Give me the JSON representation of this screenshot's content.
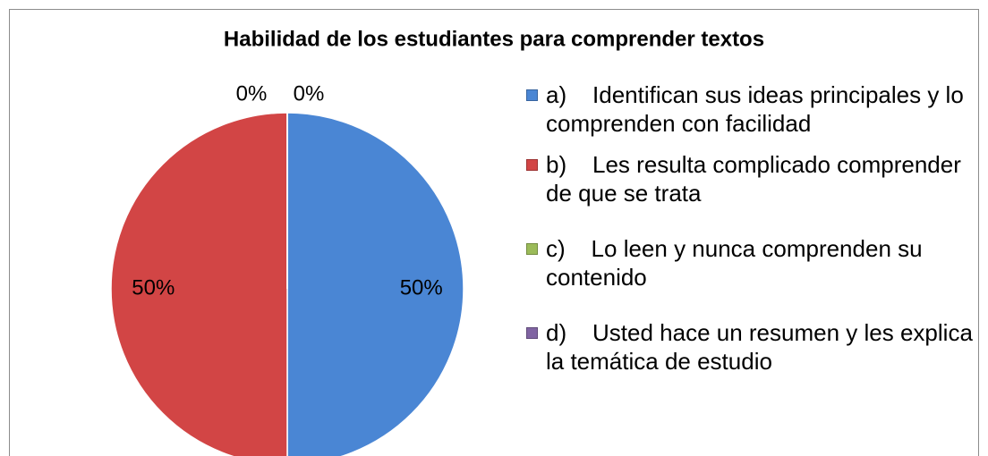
{
  "chart_data": {
    "type": "pie",
    "title": "Habilidad de los estudiantes para comprender textos",
    "categories": [
      "a)    Identifican sus ideas principales y lo comprenden con facilidad",
      "b)    Les resulta complicado comprender de que se trata",
      "c)    Lo leen y nunca comprenden su contenido",
      "d)    Usted hace un resumen y les explica la temática de estudio"
    ],
    "values": [
      50,
      50,
      0,
      0
    ],
    "value_labels": [
      "50%",
      "50%",
      "0%",
      "0%"
    ],
    "colors": [
      "#4a86d4",
      "#d24545",
      "#9bbb59",
      "#8064a2"
    ],
    "legend": "right"
  }
}
